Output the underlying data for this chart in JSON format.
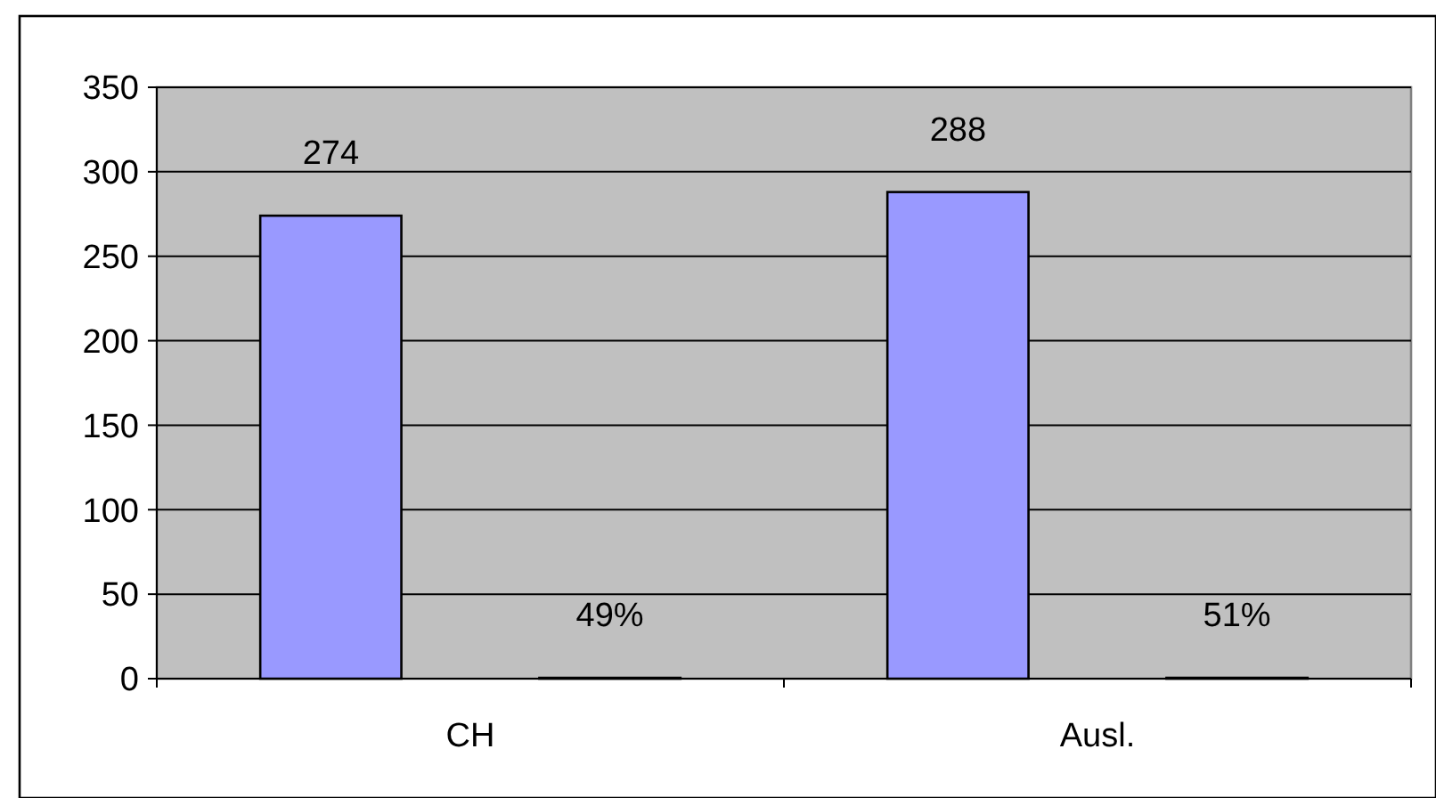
{
  "chart_data": {
    "type": "bar",
    "categories": [
      "CH",
      "Ausl."
    ],
    "series": [
      {
        "color": "#9999ff",
        "values": [
          274,
          288
        ],
        "value_labels": [
          "274",
          "288"
        ]
      },
      {
        "color": "#993366",
        "values": [
          0.49,
          0.51
        ],
        "value_labels": [
          "49%",
          "51%"
        ]
      }
    ],
    "ylim": [
      0,
      350
    ],
    "yticks": [
      0,
      50,
      100,
      150,
      200,
      250,
      300,
      350
    ],
    "grid": "y"
  }
}
